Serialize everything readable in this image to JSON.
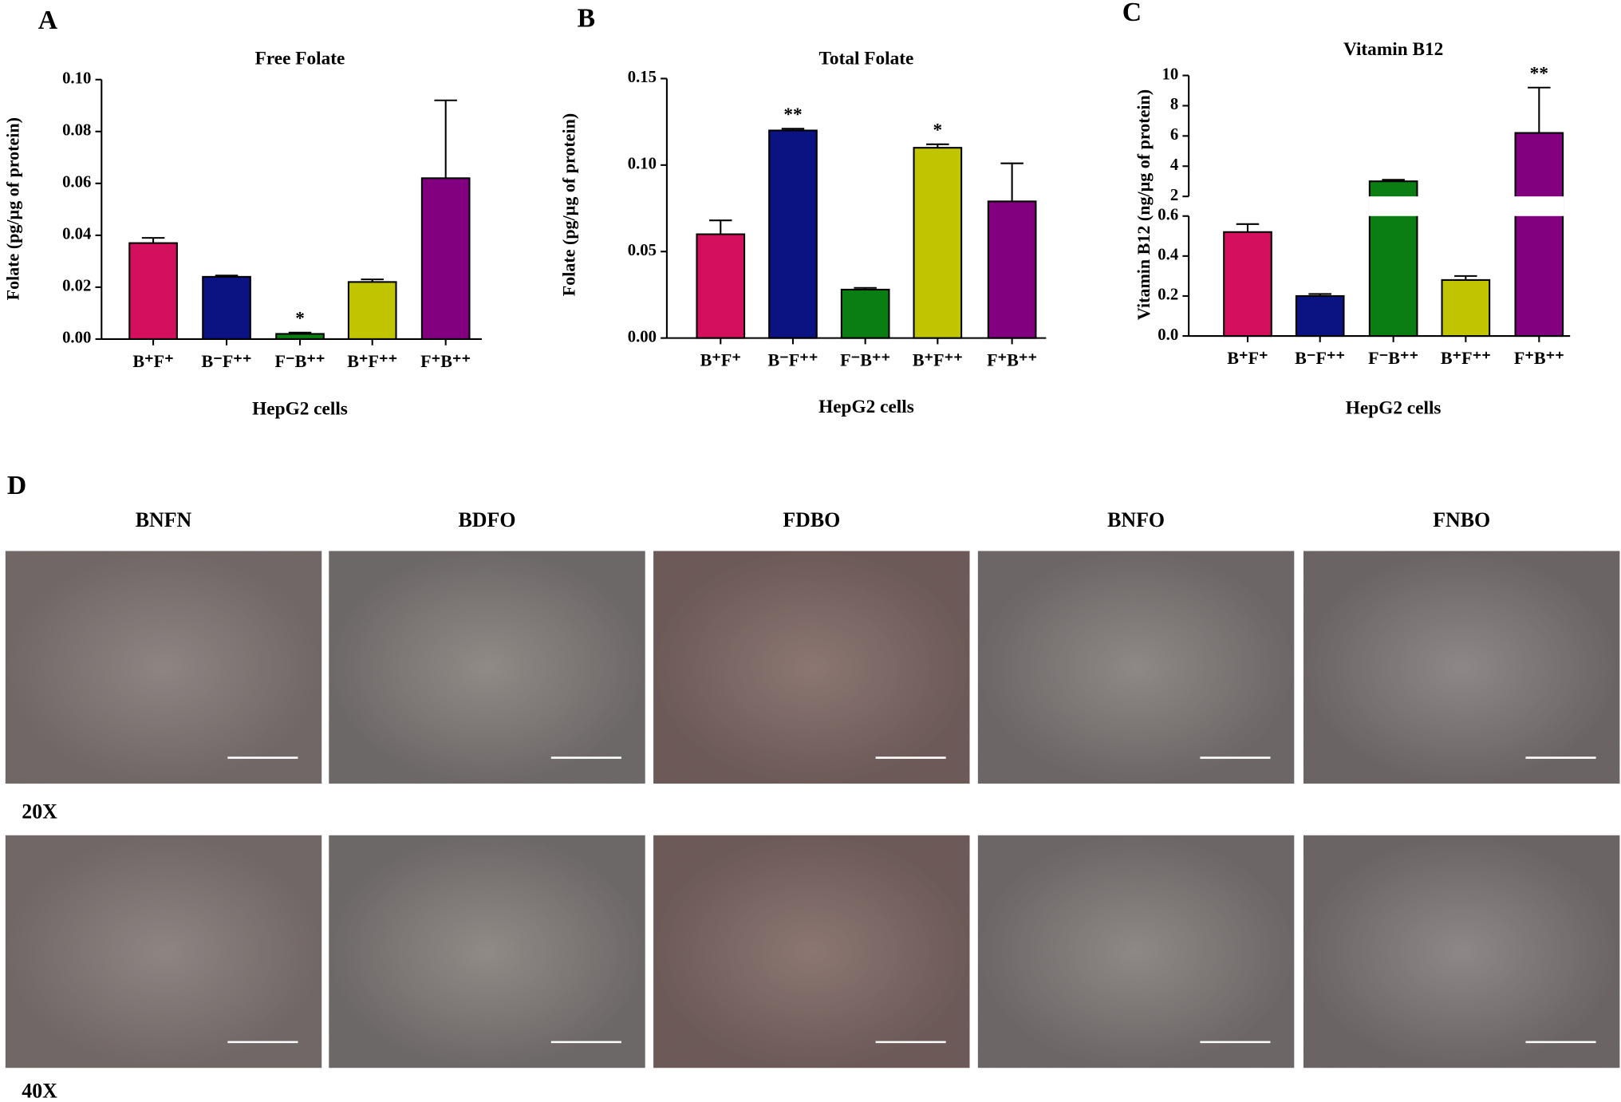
{
  "chart_data": [
    {
      "type": "bar",
      "panel_label": "A",
      "title": "Free Folate",
      "y_label": "Folate (pg/µg of protein)",
      "x_label": "HepG2 cells",
      "categories": [
        "B⁺F⁺",
        "B⁻F⁺⁺",
        "F⁻B⁺⁺",
        "B⁺F⁺⁺",
        "F⁺B⁺⁺"
      ],
      "values": [
        0.037,
        0.024,
        0.002,
        0.022,
        0.062
      ],
      "errors": [
        0.002,
        0.0005,
        0.0005,
        0.001,
        0.03
      ],
      "significance": [
        null,
        null,
        "*",
        null,
        null
      ],
      "colors": [
        "#d4105e",
        "#0b1282",
        "#0a7e12",
        "#c1c400",
        "#820080"
      ],
      "ylim": [
        0,
        0.1
      ],
      "yticks": [
        {
          "value": 0,
          "label": "0.00"
        },
        {
          "value": 0.02,
          "label": "0.02"
        },
        {
          "value": 0.04,
          "label": "0.04"
        },
        {
          "value": 0.06,
          "label": "0.06"
        },
        {
          "value": 0.08,
          "label": "0.08"
        },
        {
          "value": 0.1,
          "label": "0.10"
        }
      ]
    },
    {
      "type": "bar",
      "panel_label": "B",
      "title": "Total Folate",
      "y_label": "Folate (pg/µg of protein)",
      "x_label": "HepG2 cells",
      "categories": [
        "B⁺F⁺",
        "B⁻F⁺⁺",
        "F⁻B⁺⁺",
        "B⁺F⁺⁺",
        "F⁺B⁺⁺"
      ],
      "values": [
        0.06,
        0.12,
        0.028,
        0.11,
        0.079
      ],
      "errors": [
        0.008,
        0.001,
        0.001,
        0.002,
        0.022
      ],
      "significance": [
        null,
        "**",
        null,
        "*",
        null
      ],
      "colors": [
        "#d4105e",
        "#0b1282",
        "#0a7e12",
        "#c1c400",
        "#820080"
      ],
      "ylim": [
        0,
        0.15
      ],
      "yticks": [
        {
          "value": 0,
          "label": "0.00"
        },
        {
          "value": 0.05,
          "label": "0.05"
        },
        {
          "value": 0.1,
          "label": "0.10"
        },
        {
          "value": 0.15,
          "label": "0.15"
        }
      ]
    },
    {
      "type": "bar",
      "panel_label": "C",
      "title": "Vitamin B12",
      "y_label": "Vitamin B12 (ng/µg of protein)",
      "x_label": "HepG2 cells",
      "categories": [
        "B⁺F⁺",
        "B⁻F⁺⁺",
        "F⁻B⁺⁺",
        "B⁺F⁺⁺",
        "F⁺B⁺⁺"
      ],
      "values": [
        0.52,
        0.2,
        3.0,
        0.28,
        6.2
      ],
      "errors": [
        0.04,
        0.01,
        0.1,
        0.02,
        3.0
      ],
      "significance": [
        null,
        null,
        null,
        null,
        "**"
      ],
      "colors": [
        "#d4105e",
        "#0b1282",
        "#0a7e12",
        "#c1c400",
        "#820080"
      ],
      "ylim": [
        0,
        10
      ],
      "ybreak": [
        0.6,
        2
      ],
      "yticks": [
        {
          "value": 0,
          "label": "0.0"
        },
        {
          "value": 0.2,
          "label": "0.2"
        },
        {
          "value": 0.4,
          "label": "0.4"
        },
        {
          "value": 0.6,
          "label": "0.6"
        },
        2,
        4,
        6,
        8,
        10
      ]
    }
  ],
  "micrographs": {
    "panel_label": "D",
    "columns": [
      "BNFN",
      "BDFO",
      "FDBO",
      "BNFO",
      "FNBO"
    ],
    "rows": [
      "20X",
      "40X"
    ]
  }
}
